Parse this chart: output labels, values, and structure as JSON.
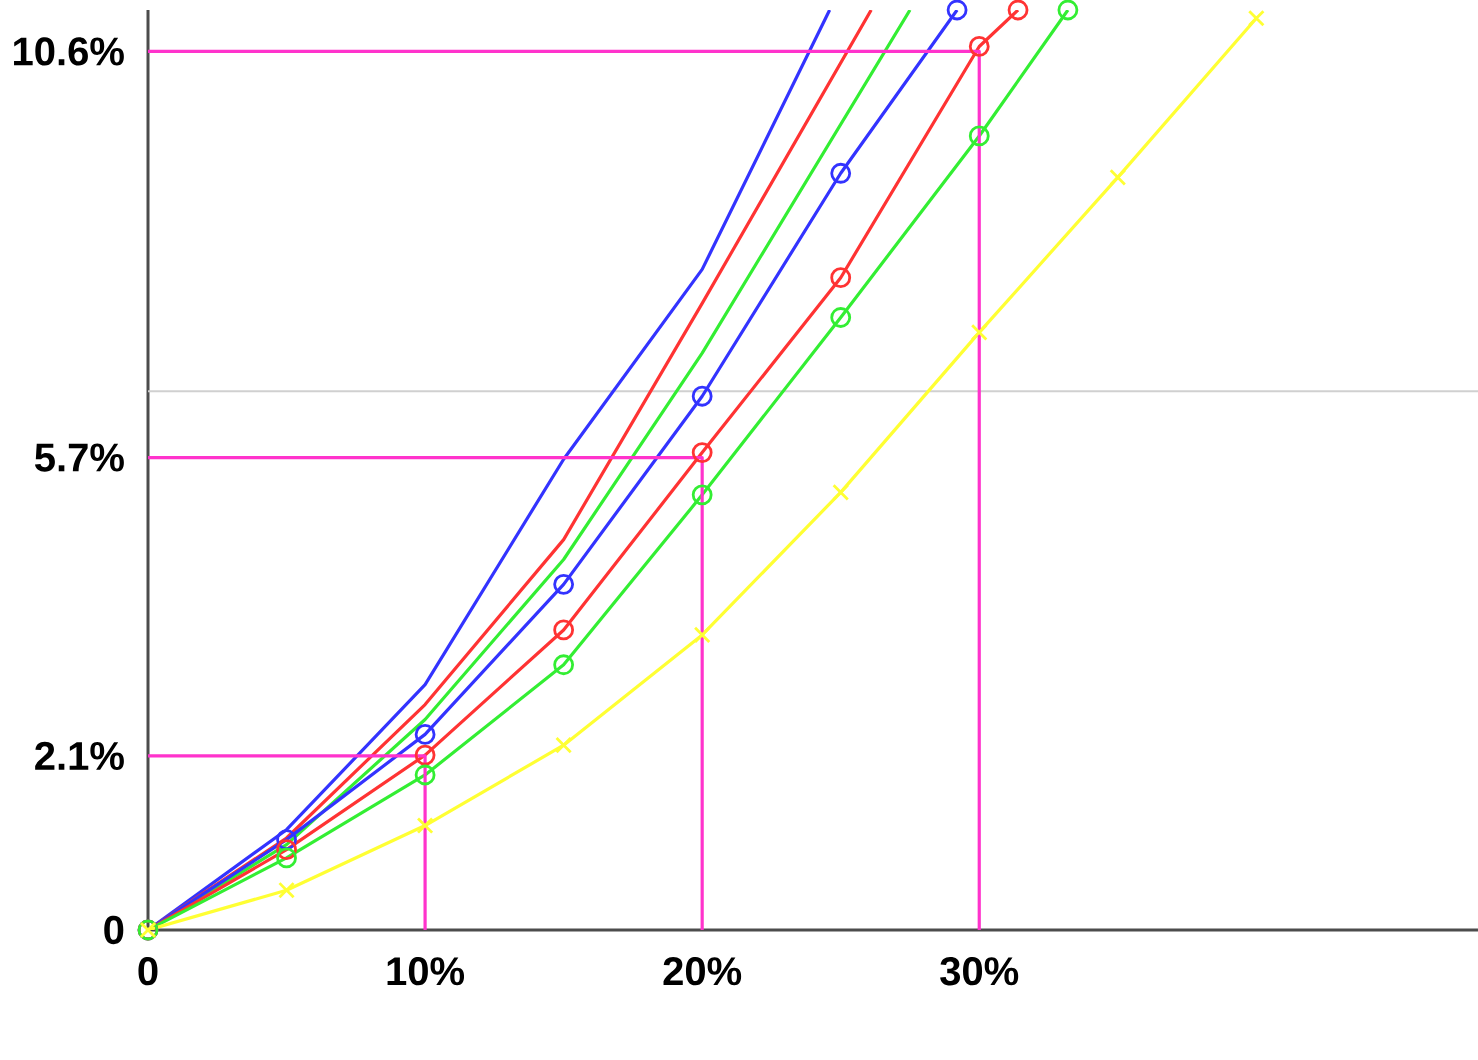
{
  "chart_data": {
    "type": "line",
    "xlim": [
      0,
      48
    ],
    "ylim": [
      0,
      11.1
    ],
    "xticks": [
      0,
      {
        "value": 10,
        "label": "10%"
      },
      {
        "value": 20,
        "label": "20%"
      },
      {
        "value": 30,
        "label": "30%"
      }
    ],
    "yticks": [
      0,
      {
        "value": 2.1,
        "label": "2.1%"
      },
      {
        "value": 5.7,
        "label": "5.7%"
      },
      {
        "value": 10.6,
        "label": "10.6%"
      }
    ],
    "ref_lines": [
      {
        "axis": "y",
        "value": 6.5,
        "color": "#d0d0d0"
      }
    ],
    "series": [
      {
        "color": "#3333ff",
        "marker": "none",
        "x": [
          0,
          5,
          10,
          15,
          20,
          24.6
        ],
        "values": [
          0,
          1.21,
          2.96,
          5.68,
          7.97,
          11.1
        ]
      },
      {
        "color": "#ff3333",
        "marker": "none",
        "x": [
          0,
          5,
          10,
          15,
          20,
          26.1
        ],
        "values": [
          0,
          1.11,
          2.72,
          4.71,
          7.56,
          11.1
        ]
      },
      {
        "color": "#33ee33",
        "marker": "none",
        "x": [
          0,
          5,
          10,
          15,
          20,
          27.5
        ],
        "values": [
          0,
          1.03,
          2.54,
          4.47,
          6.96,
          11.1
        ]
      },
      {
        "color": "#3333ff",
        "marker": "circle",
        "x": [
          0,
          5,
          10,
          15,
          20,
          25,
          29.2
        ],
        "values": [
          0,
          1.09,
          2.36,
          4.17,
          6.44,
          9.13,
          11.1
        ]
      },
      {
        "color": "#ff3333",
        "marker": "circle",
        "x": [
          0,
          5,
          10,
          15,
          20,
          25,
          30,
          31.4
        ],
        "values": [
          0,
          0.97,
          2.11,
          3.62,
          5.76,
          7.87,
          10.66,
          11.1
        ]
      },
      {
        "color": "#33ee33",
        "marker": "circle",
        "x": [
          0,
          5,
          10,
          15,
          20,
          25,
          30,
          33.2
        ],
        "values": [
          0,
          0.87,
          1.87,
          3.2,
          5.25,
          7.39,
          9.58,
          11.1
        ]
      },
      {
        "color": "#ffff33",
        "marker": "cross",
        "x": [
          0,
          5,
          10,
          15,
          20,
          25,
          30,
          35,
          40
        ],
        "values": [
          0,
          0.48,
          1.26,
          2.23,
          3.56,
          5.28,
          7.21,
          9.08,
          11.0
        ]
      },
      {
        "color": "#ff33cc",
        "marker": "none",
        "x": [
          0,
          10,
          10
        ],
        "values": [
          2.1,
          2.1,
          0
        ]
      },
      {
        "color": "#ff33cc",
        "marker": "none",
        "x": [
          0,
          20,
          20
        ],
        "values": [
          5.7,
          5.7,
          0
        ]
      },
      {
        "color": "#ff33cc",
        "marker": "none",
        "x": [
          0,
          30,
          30
        ],
        "values": [
          10.6,
          10.6,
          0
        ]
      }
    ]
  }
}
